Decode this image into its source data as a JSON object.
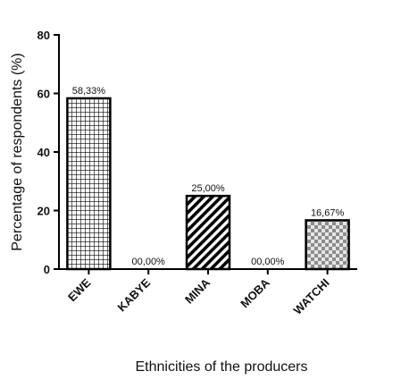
{
  "chart_data": {
    "type": "bar",
    "categories": [
      "EWE",
      "KABYE",
      "MINA",
      "MOBA",
      "WATCHI"
    ],
    "values": [
      58.33,
      0.0,
      25.0,
      0.0,
      16.67
    ],
    "data_labels": [
      "58,33%",
      "00,00%",
      "25,00%",
      "00,00%",
      "16,67%"
    ],
    "patterns": [
      "grid",
      "none",
      "diagonal-stripes",
      "none",
      "checker"
    ],
    "xlabel": "Ethnicities of the producers",
    "ylabel": "Percentage of respondents (%)",
    "ylim": [
      0,
      80
    ],
    "yticks": [
      0,
      20,
      40,
      60,
      80
    ],
    "grid": false,
    "colors": {
      "bar_edge": "#000000",
      "checker": "#8c8c8c",
      "text": "#111111"
    }
  }
}
